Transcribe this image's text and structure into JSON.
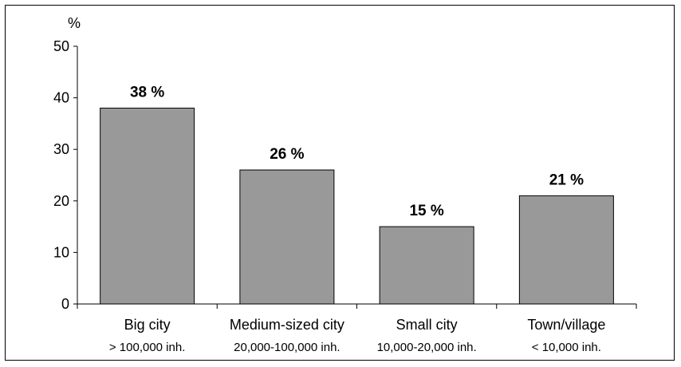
{
  "chart_data": {
    "type": "bar",
    "title": "",
    "xlabel": "",
    "ylabel": "%",
    "ylim": [
      0,
      50
    ],
    "yticks": [
      0,
      10,
      20,
      30,
      40,
      50
    ],
    "grid": false,
    "categories": [
      "Big city",
      "Medium-sized city",
      "Small city",
      "Town/village"
    ],
    "subcategories": [
      "> 100,000 inh.",
      "20,000-100,000 inh.",
      "10,000-20,000 inh.",
      "< 10,000 inh."
    ],
    "values": [
      38,
      26,
      15,
      21
    ],
    "data_labels": [
      "38 %",
      "26 %",
      "15 %",
      "21 %"
    ],
    "bar_color": "#999999",
    "bar_edge_color": "#000000"
  }
}
